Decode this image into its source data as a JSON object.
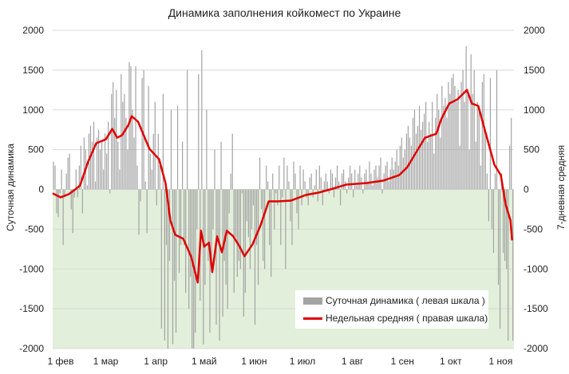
{
  "chart_data": {
    "type": "bar+line",
    "title": "Динамика заполнения койкомест по Украине",
    "ylabel_left": "Суточная динамика",
    "ylabel_right": "7-дневная средняя",
    "ylim_left": [
      -2000,
      2000
    ],
    "ylim_right": [
      -2000,
      2000
    ],
    "yticks": [
      2000,
      1500,
      1000,
      500,
      0,
      -500,
      -1000,
      -1500,
      -2000
    ],
    "xticks": [
      {
        "day": 0,
        "label": "1 фев"
      },
      {
        "day": 28,
        "label": "1 мар"
      },
      {
        "day": 59,
        "label": "1 апр"
      },
      {
        "day": 89,
        "label": "1 май"
      },
      {
        "day": 120,
        "label": "1 июн"
      },
      {
        "day": 150,
        "label": "1 июл"
      },
      {
        "day": 181,
        "label": "1 авг"
      },
      {
        "day": 212,
        "label": "1 сен"
      },
      {
        "day": 242,
        "label": "1 окт"
      },
      {
        "day": 273,
        "label": "1 ноя"
      }
    ],
    "x_unit": "days since 1 Feb",
    "grid": true,
    "negative_region_fill": "#e2efda",
    "legend": {
      "position": "bottom-right",
      "bar_label": "Суточная динамика ( левая шкала )",
      "line_label": "Недельная средняя ( правая шкала)"
    },
    "colors": {
      "bar": "#a3a3a3",
      "line": "#e00000",
      "grid": "#d9d9d9"
    },
    "series": [
      {
        "name": "Суточная динамика ( левая шкала )",
        "type": "bar",
        "axis": "left",
        "values": [
          350,
          300,
          -300,
          -350,
          -50,
          250,
          -700,
          -100,
          200,
          400,
          450,
          -250,
          -550,
          -100,
          250,
          -100,
          300,
          550,
          -300,
          650,
          500,
          50,
          700,
          800,
          600,
          850,
          100,
          650,
          750,
          500,
          600,
          250,
          700,
          450,
          850,
          -50,
          1200,
          1350,
          900,
          1250,
          600,
          250,
          1450,
          1100,
          1200,
          900,
          500,
          1600,
          1550,
          1000,
          650,
          1550,
          300,
          -570,
          -150,
          1400,
          1500,
          100,
          -550,
          1300,
          450,
          250,
          700,
          1100,
          -200,
          700,
          300,
          -1750,
          1200,
          -1900,
          -700,
          -2000,
          -900,
          1000,
          -1950,
          -1150,
          -1800,
          1050,
          -1050,
          -700,
          600,
          -700,
          -1300,
          1500,
          -1500,
          -1100,
          -2000,
          -2000,
          -1800,
          -500,
          1450,
          -1400,
          1750,
          -1950,
          -1200,
          1000,
          -900,
          -1800,
          -1000,
          -500,
          500,
          -1700,
          -600,
          -1900,
          600,
          -1600,
          -900,
          -1200,
          -1500,
          -300,
          200,
          700,
          -1300,
          -600,
          -1100,
          -900,
          -1000,
          -50,
          -1600,
          -1300,
          -400,
          -600,
          -1000,
          -500,
          -200,
          -1700,
          -700,
          -1200,
          400,
          -250,
          -900,
          -1000,
          300,
          100,
          -700,
          -1100,
          200,
          -500,
          -50,
          -200,
          300,
          -700,
          -100,
          400,
          -1000,
          300,
          100,
          -400,
          -700,
          350,
          200,
          -300,
          -500,
          300,
          -200,
          250,
          100,
          -100,
          -200,
          150,
          200,
          -100,
          50,
          250,
          -150,
          300,
          150,
          -200,
          100,
          200,
          100,
          -50,
          250,
          200,
          -100,
          150,
          300,
          100,
          -200,
          200,
          250,
          100,
          -50,
          150,
          300,
          200,
          -100,
          250,
          50,
          200,
          300,
          150,
          -50,
          200,
          250,
          100,
          350,
          200,
          50,
          250,
          300,
          150,
          300,
          400,
          -50,
          200,
          300,
          350,
          100,
          250,
          400,
          250,
          350,
          500,
          300,
          550,
          650,
          400,
          500,
          700,
          800,
          650,
          550,
          900,
          1000,
          700,
          800,
          1050,
          750,
          850,
          950,
          1100,
          600,
          850,
          700,
          1100,
          450,
          900,
          1200,
          1000,
          650,
          1300,
          1050,
          1150,
          900,
          1350,
          1200,
          1400,
          1450,
          1300,
          1100,
          1250,
          550,
          1350,
          1500,
          1100,
          1800,
          1200,
          500,
          1700,
          1200,
          1500,
          600,
          1100,
          1000,
          300,
          1350,
          1450,
          700,
          200,
          -400,
          1400,
          -500,
          -800,
          200,
          1500,
          -1200,
          -1750,
          200,
          -800,
          -900,
          -1000,
          -1900,
          550,
          900,
          -1900
        ]
      },
      {
        "name": "Недельная средняя ( правая шкала)",
        "type": "line",
        "axis": "right",
        "points": [
          [
            0,
            -50
          ],
          [
            5,
            -100
          ],
          [
            10,
            -60
          ],
          [
            14,
            0
          ],
          [
            17,
            50
          ],
          [
            22,
            350
          ],
          [
            27,
            580
          ],
          [
            33,
            630
          ],
          [
            37,
            760
          ],
          [
            40,
            650
          ],
          [
            43,
            680
          ],
          [
            47,
            810
          ],
          [
            49,
            920
          ],
          [
            53,
            850
          ],
          [
            60,
            510
          ],
          [
            66,
            380
          ],
          [
            70,
            80
          ],
          [
            73,
            -390
          ],
          [
            76,
            -570
          ],
          [
            81,
            -620
          ],
          [
            86,
            -850
          ],
          [
            90,
            -1170
          ],
          [
            92,
            -520
          ],
          [
            94,
            -720
          ],
          [
            97,
            -670
          ],
          [
            99,
            -1040
          ],
          [
            102,
            -590
          ],
          [
            105,
            -790
          ],
          [
            108,
            -520
          ],
          [
            112,
            -590
          ],
          [
            116,
            -720
          ],
          [
            119,
            -840
          ],
          [
            124,
            -690
          ],
          [
            129,
            -450
          ],
          [
            134,
            -150
          ],
          [
            140,
            -150
          ],
          [
            148,
            -140
          ],
          [
            157,
            -70
          ],
          [
            165,
            -40
          ],
          [
            174,
            10
          ],
          [
            182,
            60
          ],
          [
            195,
            80
          ],
          [
            205,
            110
          ],
          [
            215,
            180
          ],
          [
            220,
            280
          ],
          [
            225,
            450
          ],
          [
            231,
            650
          ],
          [
            238,
            700
          ],
          [
            241,
            880
          ],
          [
            246,
            1080
          ],
          [
            251,
            1130
          ],
          [
            257,
            1250
          ],
          [
            260,
            1080
          ],
          [
            264,
            1050
          ],
          [
            269,
            680
          ],
          [
            274,
            310
          ],
          [
            278,
            180
          ],
          [
            281,
            -190
          ],
          [
            284,
            -390
          ],
          [
            285,
            -640
          ]
        ]
      }
    ]
  }
}
